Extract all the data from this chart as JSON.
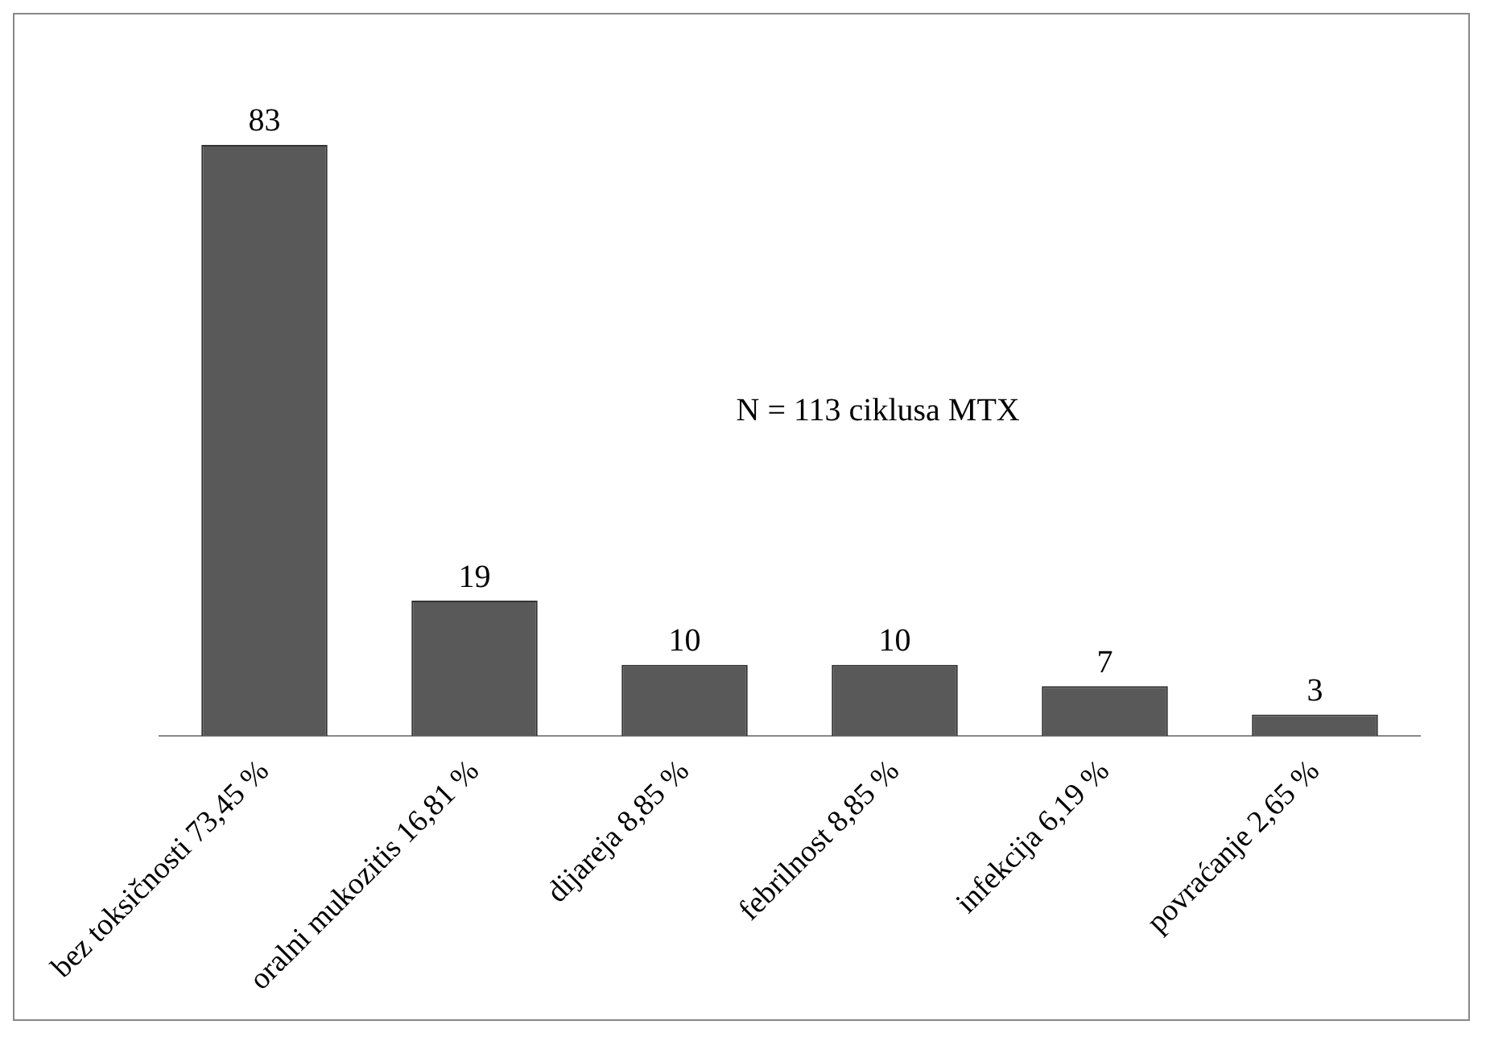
{
  "chart_data": {
    "type": "bar",
    "categories": [
      "bez toksičnosti 73,45 %",
      "oralni mukozitis 16,81 %",
      "dijareja 8,85 %",
      "febrilnost 8,85 %",
      "infekcija 6,19 %",
      "povraćanje 2,65 %"
    ],
    "values": [
      83,
      19,
      10,
      10,
      7,
      3
    ],
    "color": "#595959",
    "data_labels": true,
    "grid": false,
    "legend": false,
    "annotations": [
      "N = 113 ciklusa MTX"
    ]
  }
}
